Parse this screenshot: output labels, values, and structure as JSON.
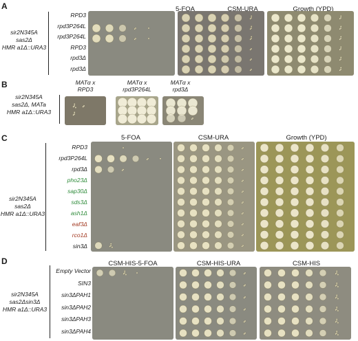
{
  "panel_a": {
    "letter": "A",
    "strain": [
      "sir2N345A",
      "sas2Δ",
      "HMR a1Δ::URA3"
    ],
    "headers": [
      "5-FOA",
      "CSM-URA",
      "Growth (YPD)"
    ],
    "rows": [
      "RPD3",
      "rpd3P264L",
      "rpd3P264L",
      "RPD3",
      "rpd3Δ",
      "rpd3Δ"
    ]
  },
  "panel_b": {
    "letter": "B",
    "strain": [
      "sir2N345A",
      "sas2Δ, MATa",
      "HMR a1Δ::URA3"
    ],
    "crosses": [
      {
        "line1": "MATα x",
        "line2": "RPD3"
      },
      {
        "line1": "MATα x",
        "line2": "rpd3P264L"
      },
      {
        "line1": "MATα x",
        "line2": "rpd3Δ"
      }
    ]
  },
  "panel_c": {
    "letter": "C",
    "strain": [
      "sir2N345A",
      "sas2Δ",
      "HMR a1Δ::URA3"
    ],
    "headers": [
      "5-FOA",
      "CSM-URA",
      "Growth (YPD)"
    ],
    "rows": [
      {
        "label": "RPD3",
        "color": "#1a1a1a"
      },
      {
        "label": "rpd3P264L",
        "color": "#1a1a1a"
      },
      {
        "label": "rpd3Δ",
        "color": "#1a1a1a"
      },
      {
        "label": "pho23Δ",
        "color": "#2e8b3a"
      },
      {
        "label": "sap30Δ",
        "color": "#2e8b3a"
      },
      {
        "label": "sds3Δ",
        "color": "#2e8b3a"
      },
      {
        "label": "ash1Δ",
        "color": "#2e8b3a"
      },
      {
        "label": "eaf3Δ",
        "color": "#a33a22"
      },
      {
        "label": "rco1Δ",
        "color": "#a33a22"
      },
      {
        "label": "sin3Δ",
        "color": "#1a1a1a"
      }
    ]
  },
  "panel_d": {
    "letter": "D",
    "strain": [
      "sir2N345A",
      "sas2Δsin3Δ",
      "HMR a1Δ::URA3"
    ],
    "headers": [
      "CSM-HIS-5-FOA",
      "CSM-HIS-URA",
      "CSM-HIS"
    ],
    "rows": [
      "Empty Vector",
      "SIN3",
      "sin3ΔPAH1",
      "sin3ΔPAH2",
      "sin3ΔPAH3",
      "sin3ΔPAH4"
    ]
  }
}
